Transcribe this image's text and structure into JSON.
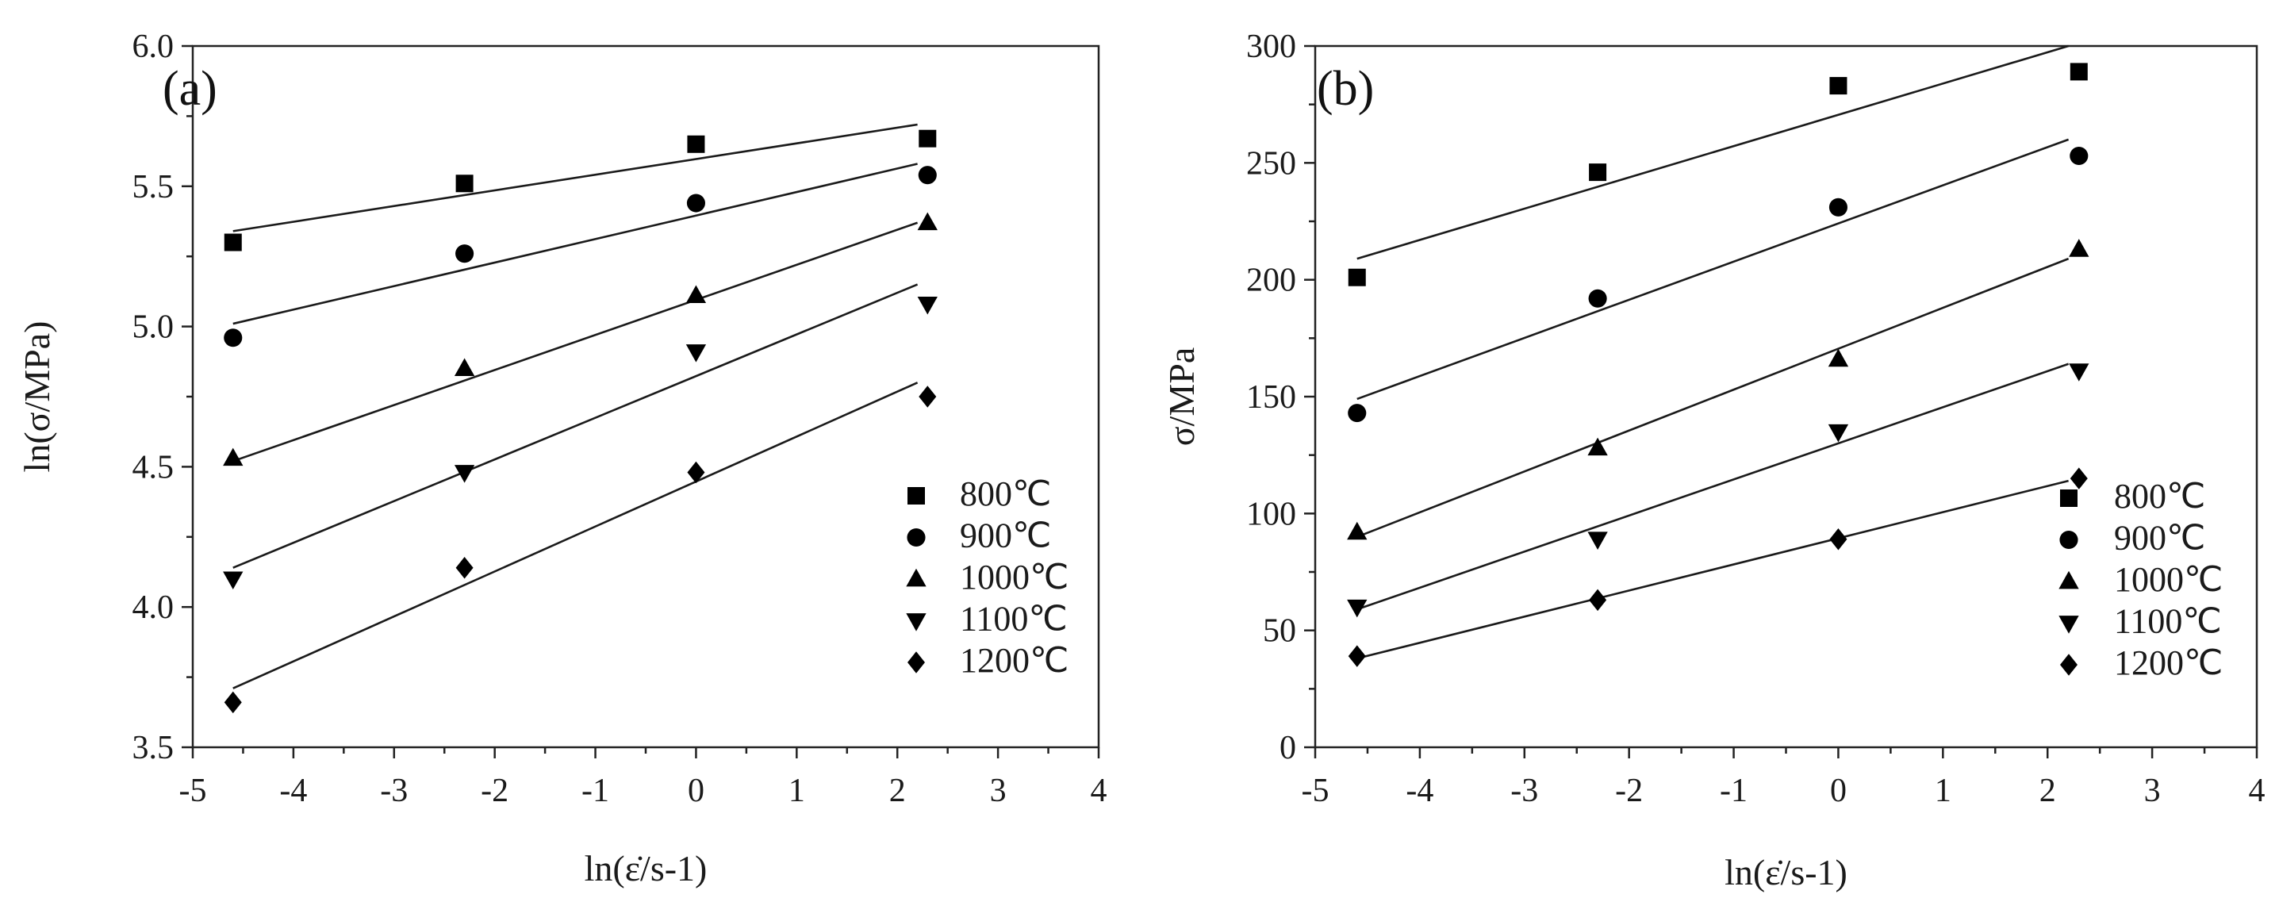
{
  "chart_data": [
    {
      "panel": "(a)",
      "type": "scatter",
      "xlabel": "ln(ε̇/s-1)",
      "ylabel": "ln(σ/MPa)",
      "xlim": [
        -5,
        4
      ],
      "ylim": [
        3.5,
        6.0
      ],
      "xticks": [
        "-5",
        "-4",
        "-3",
        "-2",
        "-1",
        "0",
        "1",
        "2",
        "3",
        "4"
      ],
      "yticks": [
        "3.5",
        "4.0",
        "4.5",
        "5.0",
        "5.5",
        "6.0"
      ],
      "x": [
        -4.6,
        -2.3,
        0,
        2.3
      ],
      "legend_position": "bottom-right",
      "series": [
        {
          "name": "800℃",
          "marker": "square",
          "values": [
            5.3,
            5.51,
            5.65,
            5.67
          ],
          "fit": [
            [
              -4.6,
              5.34
            ],
            [
              2.2,
              5.72
            ]
          ]
        },
        {
          "name": "900℃",
          "marker": "circle",
          "values": [
            4.96,
            5.26,
            5.44,
            5.54
          ],
          "fit": [
            [
              -4.6,
              5.01
            ],
            [
              2.2,
              5.58
            ]
          ]
        },
        {
          "name": "1000℃",
          "marker": "triangle-up",
          "values": [
            4.53,
            4.85,
            5.11,
            5.37
          ],
          "fit": [
            [
              -4.6,
              4.52
            ],
            [
              2.2,
              5.37
            ]
          ]
        },
        {
          "name": "1100℃",
          "marker": "triangle-down",
          "values": [
            4.1,
            4.48,
            4.91,
            5.08
          ],
          "fit": [
            [
              -4.6,
              4.14
            ],
            [
              2.2,
              5.15
            ]
          ]
        },
        {
          "name": "1200℃",
          "marker": "diamond",
          "values": [
            3.66,
            4.14,
            4.48,
            4.75
          ],
          "fit": [
            [
              -4.6,
              3.71
            ],
            [
              2.2,
              4.8
            ]
          ]
        }
      ]
    },
    {
      "panel": "(b)",
      "type": "scatter",
      "xlabel": "ln(ε̇/s-1)",
      "ylabel": "σ/MPa",
      "xlim": [
        -5,
        4
      ],
      "ylim": [
        0,
        300
      ],
      "xticks": [
        "-5",
        "-4",
        "-3",
        "-2",
        "-1",
        "0",
        "1",
        "2",
        "3",
        "4"
      ],
      "yticks": [
        "0",
        "50",
        "100",
        "150",
        "200",
        "250",
        "300"
      ],
      "x": [
        -4.6,
        -2.3,
        0,
        2.3
      ],
      "legend_position": "bottom-right",
      "series": [
        {
          "name": "800℃",
          "marker": "square",
          "values": [
            201,
            246,
            283,
            289
          ],
          "fit": [
            [
              -4.6,
              209
            ],
            [
              2.2,
              300
            ]
          ]
        },
        {
          "name": "900℃",
          "marker": "circle",
          "values": [
            143,
            192,
            231,
            253
          ],
          "fit": [
            [
              -4.6,
              149
            ],
            [
              2.2,
              260
            ]
          ]
        },
        {
          "name": "1000℃",
          "marker": "triangle-up",
          "values": [
            92,
            128,
            166,
            213
          ],
          "fit": [
            [
              -4.6,
              90
            ],
            [
              2.2,
              209
            ]
          ]
        },
        {
          "name": "1100℃",
          "marker": "triangle-down",
          "values": [
            60,
            89,
            135,
            161
          ],
          "fit": [
            [
              -4.6,
              59
            ],
            [
              2.2,
              164
            ]
          ]
        },
        {
          "name": "1200℃",
          "marker": "diamond",
          "values": [
            39,
            63,
            89,
            115
          ],
          "fit": [
            [
              -4.6,
              38
            ],
            [
              2.2,
              114
            ]
          ]
        }
      ]
    }
  ]
}
